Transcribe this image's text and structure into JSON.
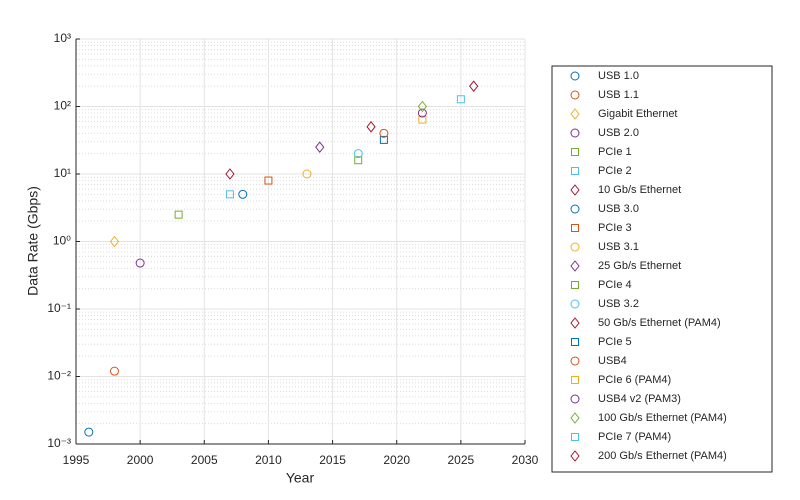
{
  "chart_data": {
    "type": "scatter",
    "xlabel": "Year",
    "ylabel": "Data Rate (Gbps)",
    "xlim": [
      1995,
      2030
    ],
    "xticks": [
      1995,
      2000,
      2005,
      2010,
      2015,
      2020,
      2025,
      2030
    ],
    "ylim": [
      0.001,
      1000
    ],
    "yscale": "log",
    "yticks": [
      {
        "value": 0.001,
        "label": "10⁻³"
      },
      {
        "value": 0.01,
        "label": "10⁻²"
      },
      {
        "value": 0.1,
        "label": "10⁻¹"
      },
      {
        "value": 1,
        "label": "10⁰"
      },
      {
        "value": 10,
        "label": "10¹"
      },
      {
        "value": 100,
        "label": "10²"
      },
      {
        "value": 1000,
        "label": "10³"
      }
    ],
    "grid": true,
    "minor_grid": true,
    "legend": "outside-right",
    "series": [
      {
        "name": "USB 1.0",
        "color": "#0072BD",
        "marker": "circle",
        "x": [
          1996
        ],
        "values": [
          0.0015
        ]
      },
      {
        "name": "USB 1.1",
        "color": "#D95319",
        "marker": "circle",
        "x": [
          1998
        ],
        "values": [
          0.012
        ]
      },
      {
        "name": "Gigabit Ethernet",
        "color": "#EDB120",
        "marker": "diamond",
        "x": [
          1998
        ],
        "values": [
          1
        ]
      },
      {
        "name": "USB 2.0",
        "color": "#7E2F8E",
        "marker": "circle",
        "x": [
          2000
        ],
        "values": [
          0.48
        ]
      },
      {
        "name": "PCIe 1",
        "color": "#77AC30",
        "marker": "square",
        "x": [
          2003
        ],
        "values": [
          2.5
        ]
      },
      {
        "name": "PCIe 2",
        "color": "#4DBEEE",
        "marker": "square",
        "x": [
          2007
        ],
        "values": [
          5
        ]
      },
      {
        "name": "10 Gb/s Ethernet",
        "color": "#A2142F",
        "marker": "diamond",
        "x": [
          2007
        ],
        "values": [
          10
        ]
      },
      {
        "name": "USB 3.0",
        "color": "#0072BD",
        "marker": "circle",
        "x": [
          2008
        ],
        "values": [
          5
        ]
      },
      {
        "name": "PCIe 3",
        "color": "#D95319",
        "marker": "square",
        "x": [
          2010
        ],
        "values": [
          8
        ]
      },
      {
        "name": "USB 3.1",
        "color": "#EDB120",
        "marker": "circle",
        "x": [
          2013
        ],
        "values": [
          10
        ]
      },
      {
        "name": "25 Gb/s Ethernet",
        "color": "#7E2F8E",
        "marker": "diamond",
        "x": [
          2014
        ],
        "values": [
          25
        ]
      },
      {
        "name": "PCIe 4",
        "color": "#77AC30",
        "marker": "square",
        "x": [
          2017
        ],
        "values": [
          16
        ]
      },
      {
        "name": "USB 3.2",
        "color": "#4DBEEE",
        "marker": "circle",
        "x": [
          2017
        ],
        "values": [
          20
        ]
      },
      {
        "name": "50 Gb/s Ethernet (PAM4)",
        "color": "#A2142F",
        "marker": "diamond",
        "x": [
          2018
        ],
        "values": [
          50
        ]
      },
      {
        "name": "PCIe 5",
        "color": "#0072BD",
        "marker": "square",
        "x": [
          2019
        ],
        "values": [
          32
        ]
      },
      {
        "name": "USB4",
        "color": "#D95319",
        "marker": "circle",
        "x": [
          2019
        ],
        "values": [
          40
        ]
      },
      {
        "name": "PCIe 6 (PAM4)",
        "color": "#EDB120",
        "marker": "square",
        "x": [
          2022
        ],
        "values": [
          64
        ]
      },
      {
        "name": "USB4 v2 (PAM3)",
        "color": "#7E2F8E",
        "marker": "circle",
        "x": [
          2022
        ],
        "values": [
          80
        ]
      },
      {
        "name": "100 Gb/s Ethernet (PAM4)",
        "color": "#77AC30",
        "marker": "diamond",
        "x": [
          2022
        ],
        "values": [
          100
        ]
      },
      {
        "name": "PCIe 7 (PAM4)",
        "color": "#4DBEEE",
        "marker": "square",
        "x": [
          2025
        ],
        "values": [
          128
        ]
      },
      {
        "name": "200 Gb/s Ethernet (PAM4)",
        "color": "#A2142F",
        "marker": "diamond",
        "x": [
          2026
        ],
        "values": [
          200
        ]
      }
    ]
  }
}
